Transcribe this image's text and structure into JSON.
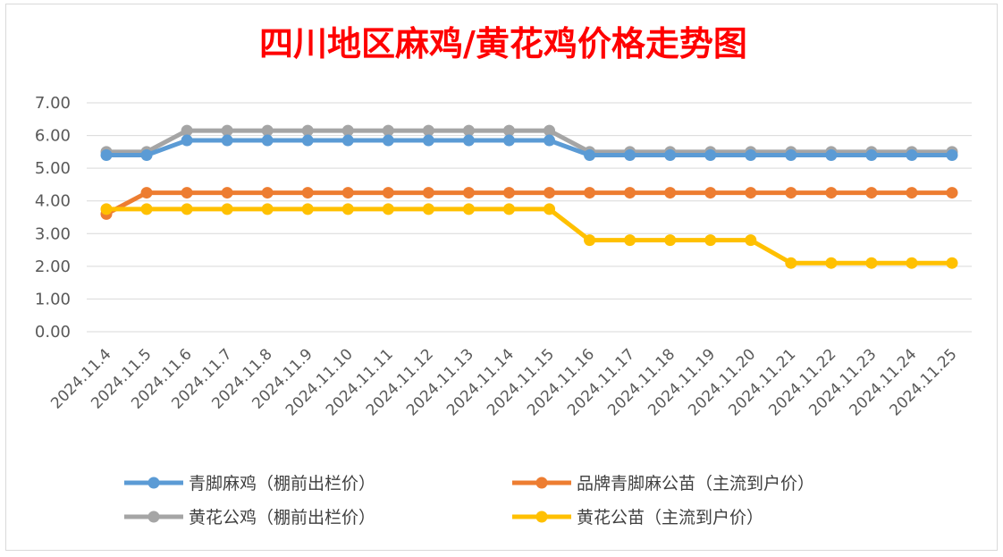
{
  "chart_data": {
    "type": "line",
    "title": "四川地区麻鸡/黄花鸡价格走势图",
    "xlabel": "",
    "ylabel": "",
    "ylim": [
      0,
      7
    ],
    "y_ticks": [
      "0.00",
      "1.00",
      "2.00",
      "3.00",
      "4.00",
      "5.00",
      "6.00",
      "7.00"
    ],
    "grid": "horizontal",
    "legend_position": "bottom",
    "categories": [
      "2024.11.4",
      "2024.11.5",
      "2024.11.6",
      "2024.11.7",
      "2024.11.8",
      "2024.11.9",
      "2024.11.10",
      "2024.11.11",
      "2024.11.12",
      "2024.11.13",
      "2024.11.14",
      "2024.11.15",
      "2024.11.16",
      "2024.11.17",
      "2024.11.18",
      "2024.11.19",
      "2024.11.20",
      "2024.11.21",
      "2024.11.22",
      "2024.11.23",
      "2024.11.24",
      "2024.11.25"
    ],
    "series": [
      {
        "name": "青脚麻鸡（棚前出栏价）",
        "color": "#5b9bd5",
        "values": [
          5.4,
          5.4,
          5.85,
          5.85,
          5.85,
          5.85,
          5.85,
          5.85,
          5.85,
          5.85,
          5.85,
          5.85,
          5.4,
          5.4,
          5.4,
          5.4,
          5.4,
          5.4,
          5.4,
          5.4,
          5.4,
          5.4
        ]
      },
      {
        "name": "品牌青脚麻公苗（主流到户价）",
        "color": "#ed7d31",
        "values": [
          3.6,
          4.25,
          4.25,
          4.25,
          4.25,
          4.25,
          4.25,
          4.25,
          4.25,
          4.25,
          4.25,
          4.25,
          4.25,
          4.25,
          4.25,
          4.25,
          4.25,
          4.25,
          4.25,
          4.25,
          4.25,
          4.25
        ]
      },
      {
        "name": "黄花公鸡（棚前出栏价）",
        "color": "#a5a5a5",
        "values": [
          5.5,
          5.5,
          6.15,
          6.15,
          6.15,
          6.15,
          6.15,
          6.15,
          6.15,
          6.15,
          6.15,
          6.15,
          5.5,
          5.5,
          5.5,
          5.5,
          5.5,
          5.5,
          5.5,
          5.5,
          5.5,
          5.5
        ]
      },
      {
        "name": "黄花公苗（主流到户价）",
        "color": "#ffc000",
        "values": [
          3.75,
          3.75,
          3.75,
          3.75,
          3.75,
          3.75,
          3.75,
          3.75,
          3.75,
          3.75,
          3.75,
          3.75,
          2.8,
          2.8,
          2.8,
          2.8,
          2.8,
          2.1,
          2.1,
          2.1,
          2.1,
          2.1
        ]
      }
    ]
  }
}
